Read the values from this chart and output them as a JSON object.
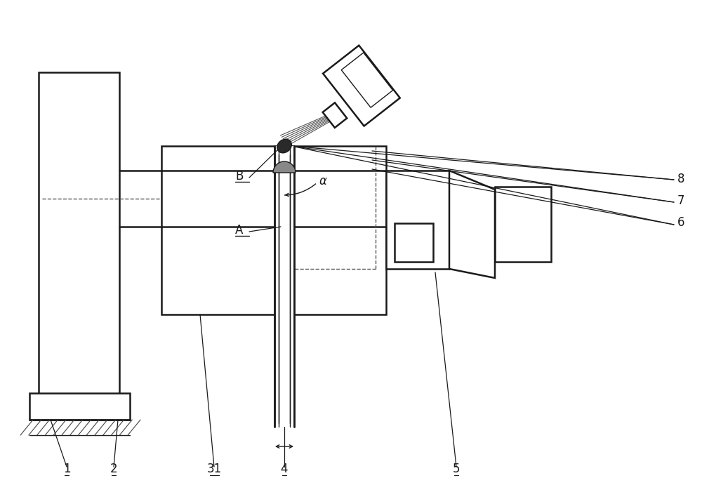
{
  "bg_color": "#ffffff",
  "lc": "#1a1a1a",
  "dc": "#555555",
  "figsize": [
    10.0,
    7.08
  ],
  "dpi": 100
}
